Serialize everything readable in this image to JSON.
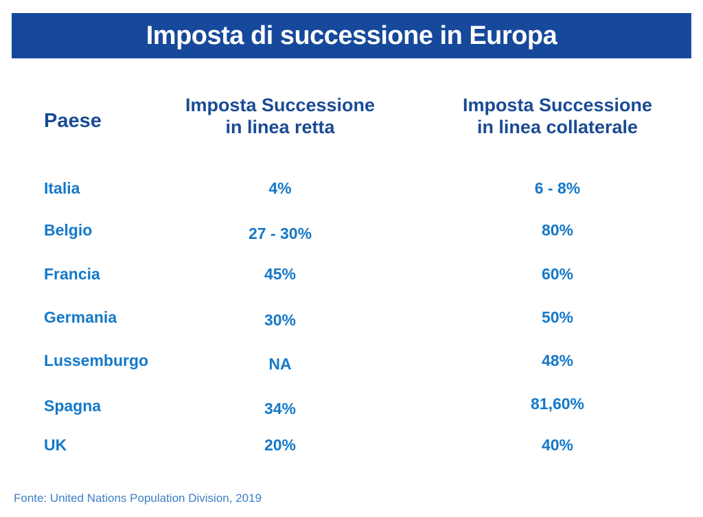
{
  "colors": {
    "banner_bg": "#16499B",
    "banner_text": "#FFFFFF",
    "header_text": "#1A4B94",
    "data_text": "#1478C8",
    "source_text": "#3E7DC5"
  },
  "header": {
    "col1": "Paese",
    "col2_line1": "Imposta Successione",
    "col2_line2": "in linea retta",
    "col3_line1": "Imposta Successione",
    "col3_line2": "in linea collaterale"
  },
  "chart_data": {
    "type": "table",
    "title": "Imposta di successione in Europa",
    "columns": [
      "Paese",
      "Imposta Successione in linea retta",
      "Imposta Successione in linea collaterale"
    ],
    "rows": [
      [
        "Italia",
        "4%",
        "6 - 8%"
      ],
      [
        "Belgio",
        "27 - 30%",
        "80%"
      ],
      [
        "Francia",
        "45%",
        "60%"
      ],
      [
        "Germania",
        "30%",
        "50%"
      ],
      [
        "Lussemburgo",
        "NA",
        "48%"
      ],
      [
        "Spagna",
        "34%",
        "81,60%"
      ],
      [
        "UK",
        "20%",
        "40%"
      ]
    ],
    "source": "Fonte: United Nations Population Division, 2019"
  }
}
